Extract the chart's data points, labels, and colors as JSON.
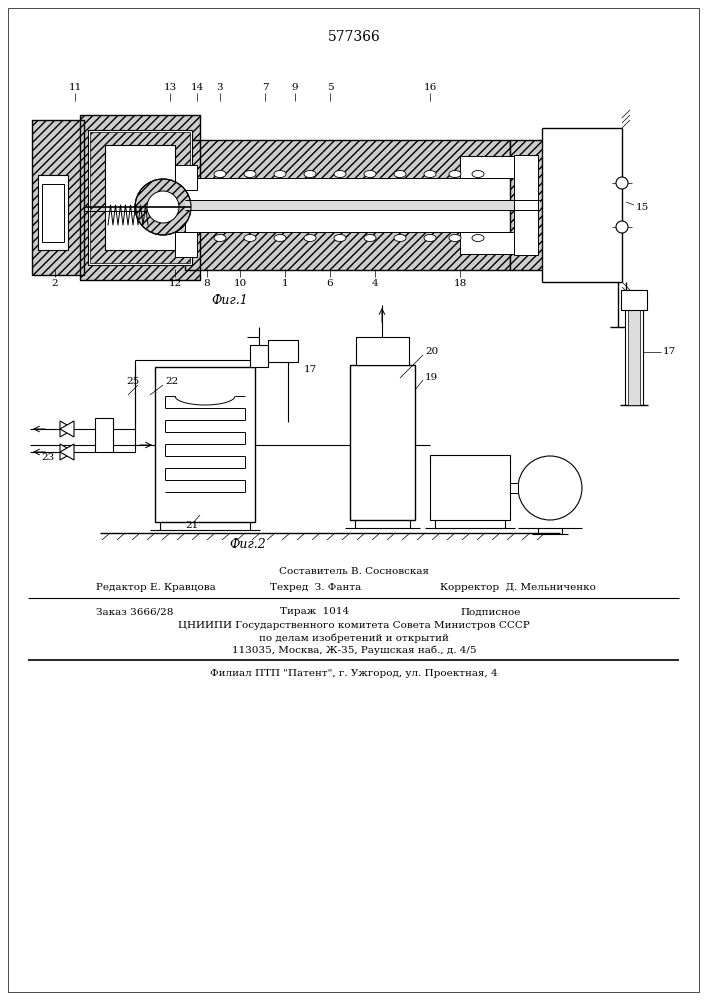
{
  "patent_number": "577366",
  "fig1_caption": "Фиг.1",
  "fig2_caption": "Фиг.2",
  "footer_line1": "Составитель В. Сосновская",
  "footer_line2_left": "Редактор Е. Кравцова",
  "footer_line2_mid": "Техред  З. Фанта",
  "footer_line2_right": "Корректор  Д. Мельниченко",
  "footer_line3_left": "Заказ 3666/28",
  "footer_line3_mid": "Тираж  1014",
  "footer_line3_right": "Подписное",
  "footer_line4": "ЦНИИПИ Государственного комитета Совета Министров СССР",
  "footer_line5": "по делам изобретений и открытий",
  "footer_line6": "113035, Москва, Ж-35, Раушская наб., д. 4/5",
  "footer_line7": "Филиал ПТП \"Патент\", г. Ужгород, ул. Проектная, 4",
  "bg_color": "#ffffff",
  "line_color": "#000000"
}
